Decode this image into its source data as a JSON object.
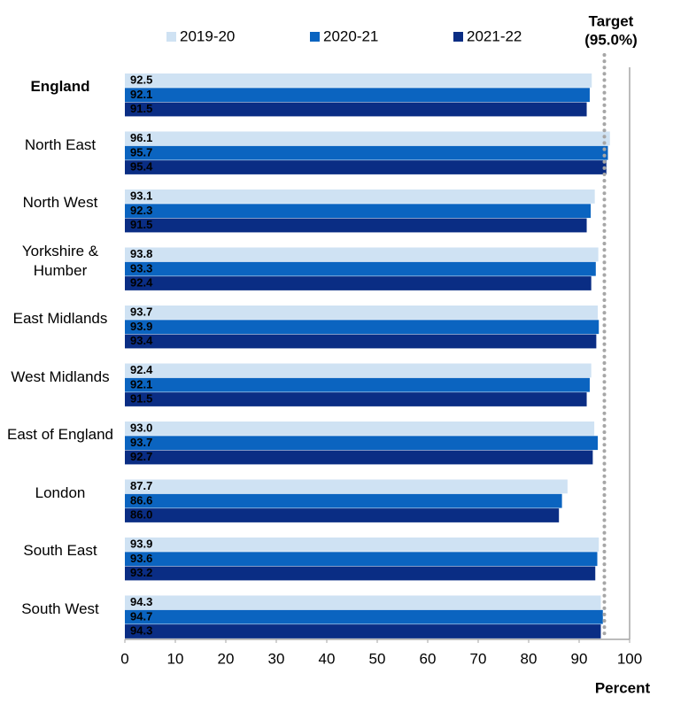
{
  "chart_data": {
    "type": "hbar",
    "categories": [
      "England",
      "North East",
      "North West",
      "Yorkshire &\nHumber",
      "East Midlands",
      "West Midlands",
      "East of England",
      "London",
      "South East",
      "South West"
    ],
    "series": [
      {
        "name": "2019-20",
        "color": "#cfe2f3",
        "label_color": "#000000",
        "values": [
          92.5,
          96.1,
          93.1,
          93.8,
          93.7,
          92.4,
          93.0,
          87.7,
          93.9,
          94.3
        ],
        "value_labels": [
          "92.5",
          "96.1",
          "93.1",
          "93.8",
          "93.7",
          "92.4",
          "93.0",
          "87.7",
          "93.9",
          "94.3"
        ]
      },
      {
        "name": "2020-21",
        "color": "#0b64c0",
        "label_color": "#ffffff",
        "values": [
          92.1,
          95.7,
          92.3,
          93.3,
          93.9,
          92.1,
          93.7,
          86.6,
          93.6,
          94.7
        ],
        "value_labels": [
          "92.1",
          "95.7",
          "92.3",
          "93.3",
          "93.9",
          "92.1",
          "93.7",
          "86.6",
          "93.6",
          "94.7"
        ]
      },
      {
        "name": "2021-22",
        "color": "#0a2d84",
        "label_color": "#ffffff",
        "values": [
          91.5,
          95.4,
          91.5,
          92.4,
          93.4,
          91.5,
          92.7,
          86.0,
          93.2,
          94.3
        ],
        "value_labels": [
          "91.5",
          "95.4",
          "91.5",
          "92.4",
          "93.4",
          "91.5",
          "92.7",
          "86.0",
          "93.2",
          "94.3"
        ]
      }
    ],
    "xlim": [
      0,
      100
    ],
    "xticks": [
      0,
      10,
      20,
      30,
      40,
      50,
      60,
      70,
      80,
      90,
      100
    ],
    "xlabel": "Percent",
    "target": {
      "value": 95,
      "label_lines": [
        "Target",
        "(95.0%)"
      ],
      "color": "#a6a6a6"
    },
    "bold_categories": [
      "England"
    ],
    "legend": "top"
  }
}
